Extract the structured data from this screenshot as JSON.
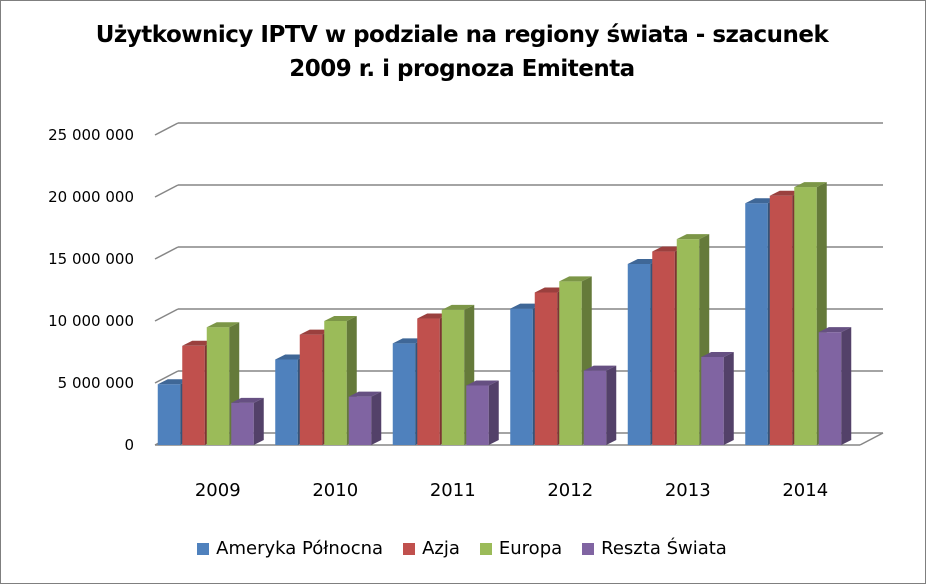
{
  "chart_data": {
    "type": "bar",
    "title_lines": [
      "Użytkownicy IPTV  w podziale na regiony świata - szacunek",
      "2009 r. i prognoza Emitenta"
    ],
    "categories": [
      "2009",
      "2010",
      "2011",
      "2012",
      "2013",
      "2014"
    ],
    "series": [
      {
        "name": "Ameryka Północna",
        "color": "#4f81bd",
        "values": [
          4900000,
          6900000,
          8200000,
          11000000,
          14600000,
          19500000
        ]
      },
      {
        "name": "Azja",
        "color": "#c0504d",
        "values": [
          8000000,
          8900000,
          10200000,
          12300000,
          15600000,
          20100000
        ]
      },
      {
        "name": "Europa",
        "color": "#9bbb59",
        "values": [
          9500000,
          10000000,
          10900000,
          13200000,
          16600000,
          20800000
        ]
      },
      {
        "name": "Reszta Świata",
        "color": "#8064a2",
        "values": [
          3400000,
          3900000,
          4800000,
          6000000,
          7100000,
          9100000
        ]
      }
    ],
    "ylim": [
      0,
      25000000
    ],
    "yticks": [
      0,
      5000000,
      10000000,
      15000000,
      20000000,
      25000000
    ],
    "ytick_labels": [
      "0",
      "5 000 000",
      "10 000 000",
      "15 000 000",
      "20 000 000",
      "25 000 000"
    ],
    "grid": true,
    "legend_position": "bottom",
    "three_d": true
  }
}
